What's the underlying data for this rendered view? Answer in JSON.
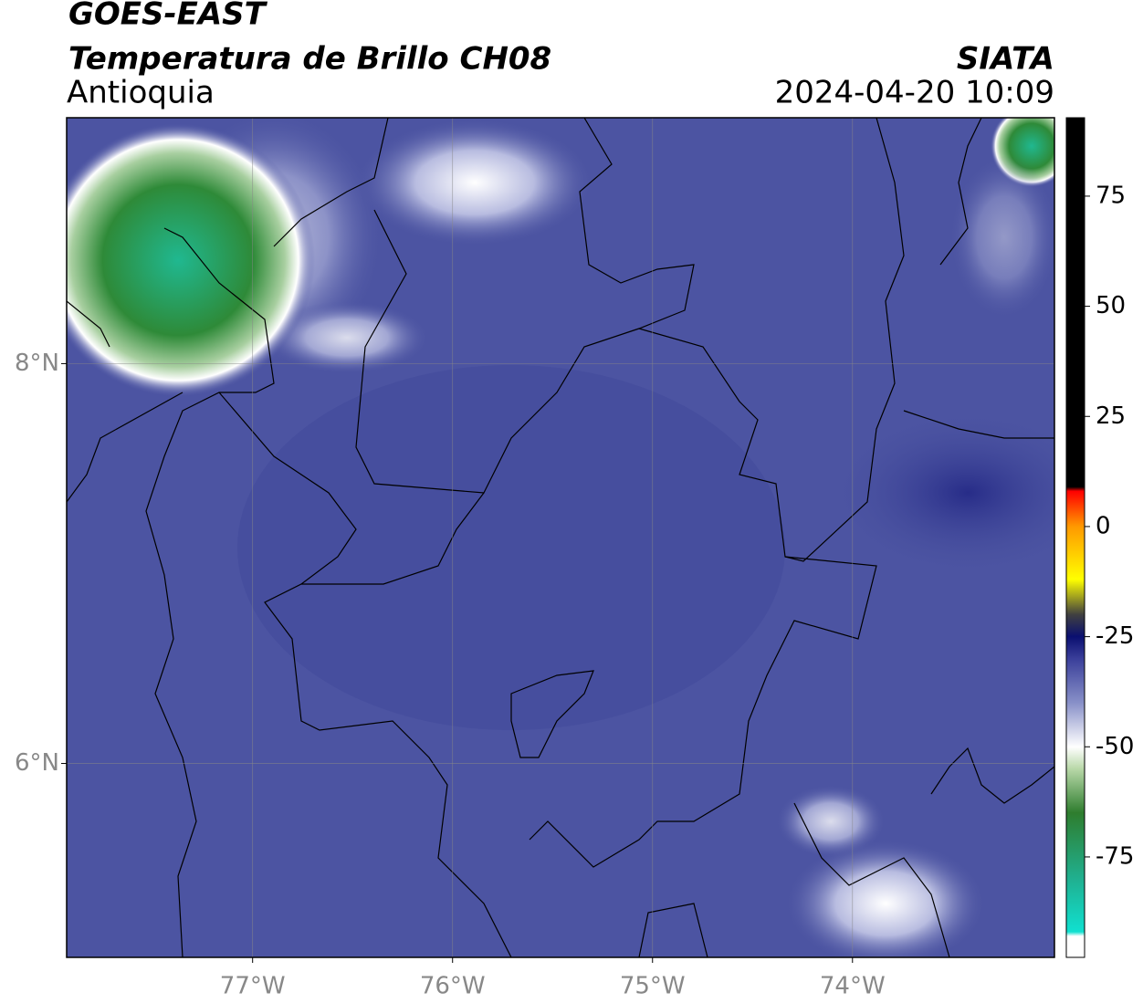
{
  "header": {
    "title": "GOES-EAST",
    "subtitle": "Temperatura de Brillo CH08",
    "region": "Antioquia",
    "source": "SIATA",
    "datetime": "2024-04-20 10:09"
  },
  "map": {
    "xlim": [
      -77.93,
      -72.99
    ],
    "ylim": [
      5.03,
      9.23
    ],
    "xticks": [
      {
        "value": -77,
        "label": "77°W"
      },
      {
        "value": -76,
        "label": "76°W"
      },
      {
        "value": -75,
        "label": "75°W"
      },
      {
        "value": -74,
        "label": "74°W"
      }
    ],
    "yticks": [
      {
        "value": 6,
        "label": "6°N"
      },
      {
        "value": 8,
        "label": "8°N"
      }
    ],
    "grid": true
  },
  "colorbar": {
    "lim": [
      -97.8,
      92.8
    ],
    "ticks": [
      75,
      50,
      25,
      0,
      -25,
      -50,
      -75
    ],
    "stops": [
      {
        "value": -97.8,
        "color": "#ffffff"
      },
      {
        "value": -93,
        "color": "#ffffff"
      },
      {
        "value": -92,
        "color": "#10e0d0"
      },
      {
        "value": -80,
        "color": "#20b090"
      },
      {
        "value": -65,
        "color": "#2e7d2e"
      },
      {
        "value": -55,
        "color": "#b8d8a8"
      },
      {
        "value": -50,
        "color": "#ffffff"
      },
      {
        "value": -40,
        "color": "#8890c8"
      },
      {
        "value": -30,
        "color": "#3a3f9a"
      },
      {
        "value": -25,
        "color": "#0a0f70"
      },
      {
        "value": -20,
        "color": "#404040"
      },
      {
        "value": -12,
        "color": "#ffff00"
      },
      {
        "value": 0,
        "color": "#ff9900"
      },
      {
        "value": 8,
        "color": "#ff0000"
      },
      {
        "value": 9,
        "color": "#000000"
      },
      {
        "value": 92.8,
        "color": "#000000"
      }
    ]
  }
}
